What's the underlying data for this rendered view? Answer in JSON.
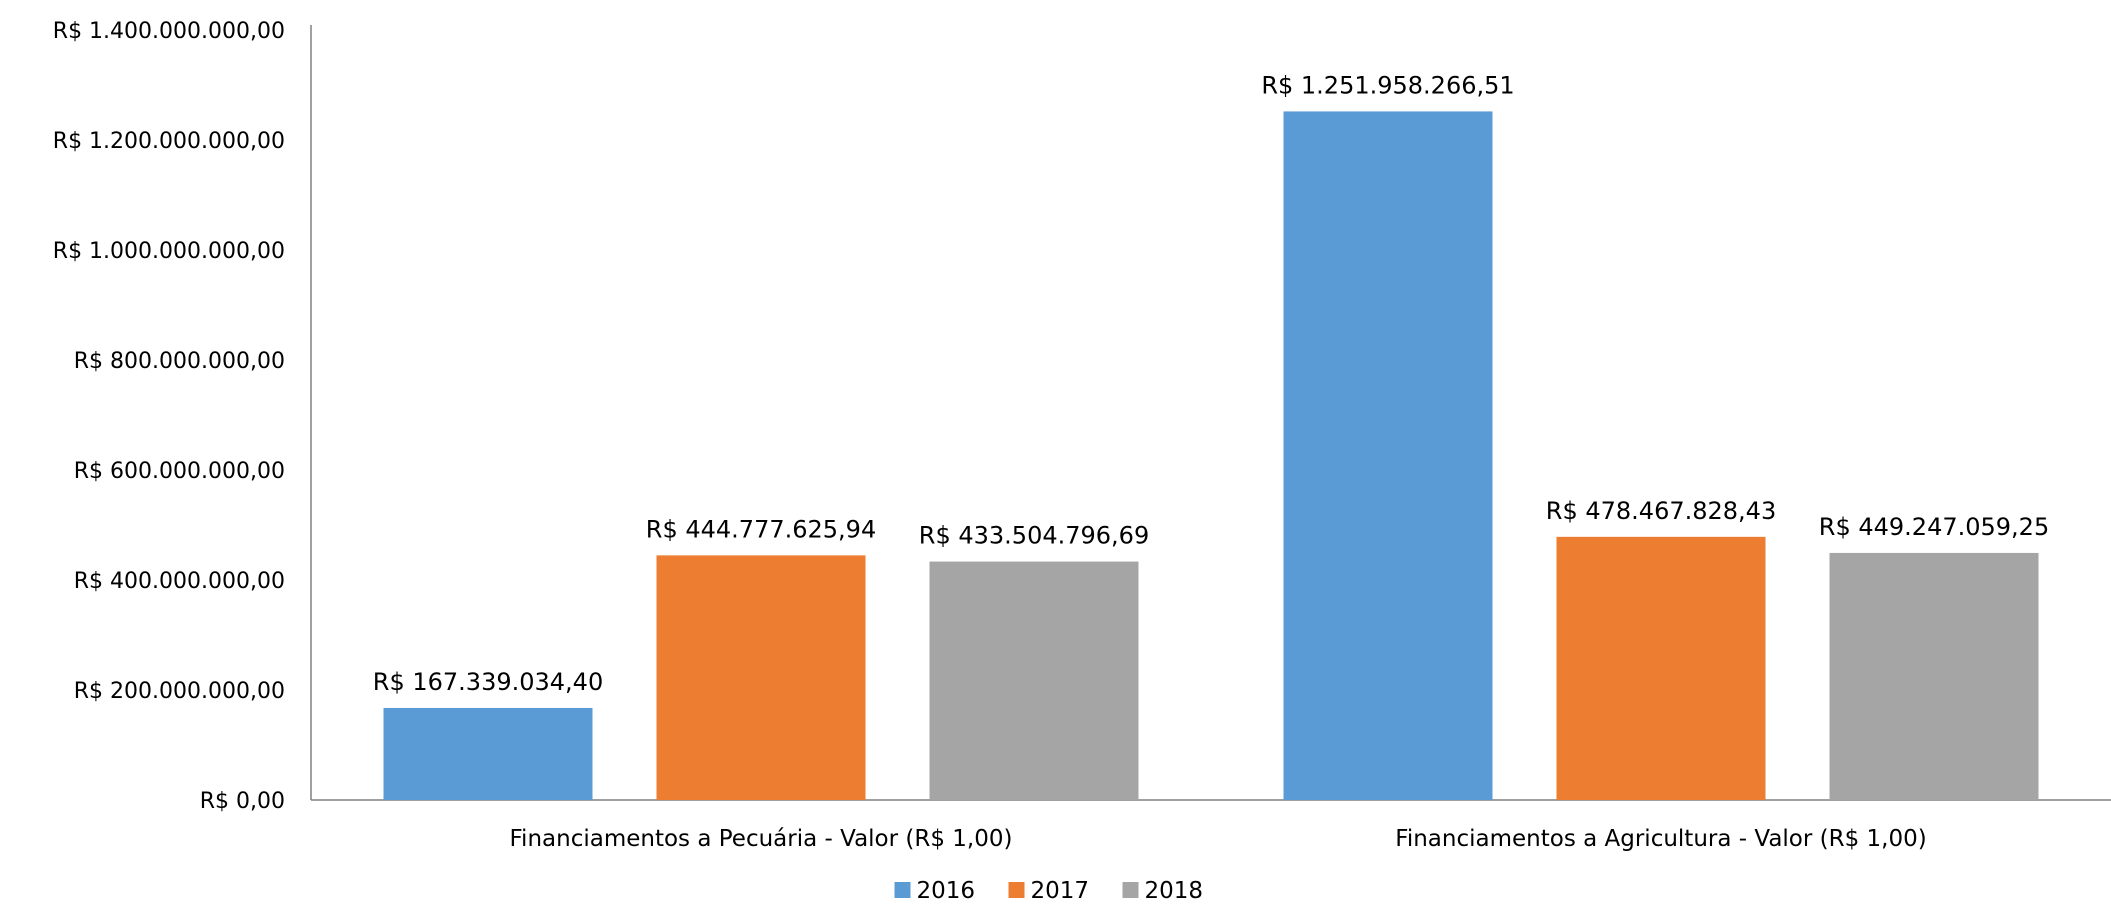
{
  "chart_data": {
    "type": "bar",
    "categories": [
      "Financiamentos a Pecuária - Valor (R$ 1,00)",
      "Financiamentos a Agricultura - Valor (R$ 1,00)"
    ],
    "series": [
      {
        "name": "2016",
        "values": [
          167339034.4,
          1251958266.51
        ],
        "labels": [
          "R$ 167.339.034,40",
          "R$ 1.251.958.266,51"
        ],
        "color": "#5B9BD5"
      },
      {
        "name": "2017",
        "values": [
          444777625.94,
          478467828.43
        ],
        "labels": [
          "R$ 444.777.625,94",
          "R$ 478.467.828,43"
        ],
        "color": "#ED7D31"
      },
      {
        "name": "2018",
        "values": [
          433504796.69,
          449247059.25
        ],
        "labels": [
          "R$ 433.504.796,69",
          "R$ 449.247.059,25"
        ],
        "color": "#A5A5A5"
      }
    ],
    "ylim": [
      0,
      1400000000
    ],
    "y_ticks": [
      0,
      200000000,
      400000000,
      600000000,
      800000000,
      1000000000,
      1200000000,
      1400000000
    ],
    "y_tick_labels": [
      "R$ 0,00",
      "R$ 200.000.000,00",
      "R$ 400.000.000,00",
      "R$ 600.000.000,00",
      "R$ 800.000.000,00",
      "R$ 1.000.000.000,00",
      "R$ 1.200.000.000,00",
      "R$ 1.400.000.000,00"
    ],
    "grid": false,
    "legend_position": "bottom-center",
    "axis_color": "#808080"
  }
}
